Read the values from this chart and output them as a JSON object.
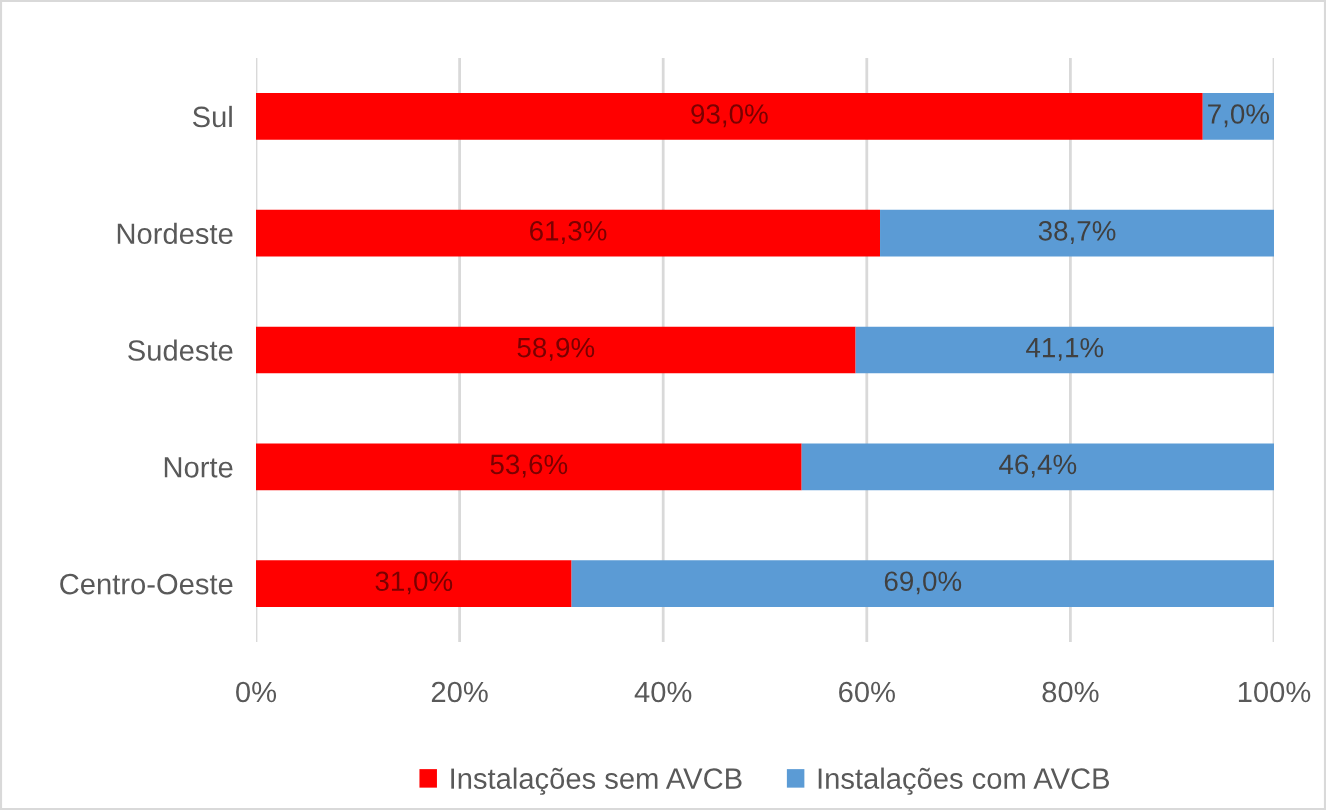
{
  "chart_data": {
    "type": "bar",
    "orientation": "horizontal",
    "stacked": true,
    "categories": [
      "Sul",
      "Nordeste",
      "Sudeste",
      "Norte",
      "Centro-Oeste"
    ],
    "series": [
      {
        "name": "Instalações sem AVCB",
        "color": "#ff0000",
        "values": [
          93.0,
          61.3,
          58.9,
          53.6,
          31.0
        ],
        "value_labels": [
          "93,0%",
          "61,3%",
          "58,9%",
          "53,6%",
          "31,0%"
        ]
      },
      {
        "name": "Instalações com AVCB",
        "color": "#5b9bd5",
        "values": [
          7.0,
          38.7,
          41.1,
          46.4,
          69.0
        ],
        "value_labels": [
          "7,0%",
          "38,7%",
          "41,1%",
          "46,4%",
          "69,0%"
        ]
      }
    ],
    "xlim": [
      0,
      100
    ],
    "xticks": [
      {
        "value": 0,
        "label": "0%"
      },
      {
        "value": 20,
        "label": "20%"
      },
      {
        "value": 40,
        "label": "40%"
      },
      {
        "value": 60,
        "label": "60%"
      },
      {
        "value": 80,
        "label": "80%"
      },
      {
        "value": 100,
        "label": "100%"
      }
    ],
    "grid": "x",
    "legend": "bottom"
  }
}
